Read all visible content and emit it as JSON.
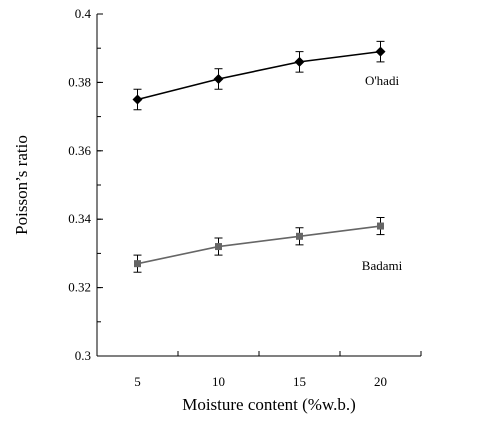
{
  "chart_data": {
    "type": "line",
    "title": "",
    "xlabel": "Moisture content (%w.b.)",
    "ylabel": "Poisson’s ratio",
    "x": [
      5,
      10,
      15,
      20
    ],
    "xticks": [
      "5",
      "10",
      "15",
      "20"
    ],
    "xlim": [
      2.5,
      22.5
    ],
    "ylim": [
      0.3,
      0.4
    ],
    "yticks": [
      "0.3",
      "0.32",
      "0.34",
      "0.36",
      "0.38",
      "0.4"
    ],
    "grid": false,
    "series": [
      {
        "name": "O'hadi",
        "values": [
          0.375,
          0.381,
          0.386,
          0.389
        ],
        "errors": [
          0.003,
          0.003,
          0.003,
          0.003
        ],
        "color": "#000000",
        "marker": "diamond"
      },
      {
        "name": "Badami",
        "values": [
          0.327,
          0.332,
          0.335,
          0.338
        ],
        "errors": [
          0.0025,
          0.0025,
          0.0025,
          0.0025
        ],
        "color": "#666666",
        "marker": "square"
      }
    ]
  }
}
